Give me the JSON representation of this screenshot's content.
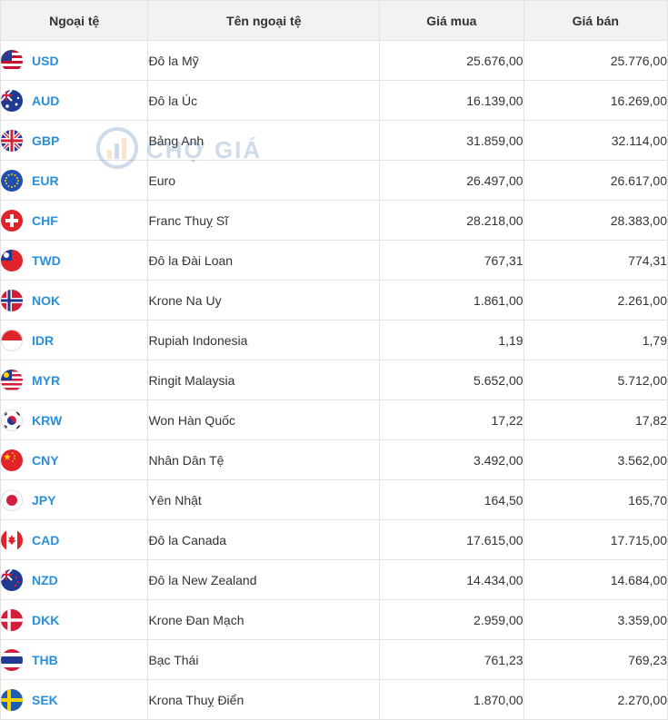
{
  "headers": {
    "code": "Ngoại tệ",
    "name": "Tên ngoại tệ",
    "buy": "Giá mua",
    "sell": "Giá bán"
  },
  "watermark": {
    "text": "CHỢ GIÁ"
  },
  "colors": {
    "increase": "#e0242b",
    "decrease": "#2fbf71",
    "code": "#2a8fd8"
  },
  "rows": [
    {
      "code": "USD",
      "name": "Đô la Mỹ",
      "buy": "25.676,00",
      "sell": "25.776,00",
      "trend": "up",
      "flag": "us-flag-icon"
    },
    {
      "code": "AUD",
      "name": "Đô la Úc",
      "buy": "16.139,00",
      "sell": "16.269,00",
      "trend": "up",
      "flag": "au-flag-icon"
    },
    {
      "code": "GBP",
      "name": "Bảng Anh",
      "buy": "31.859,00",
      "sell": "32.114,00",
      "trend": "up",
      "flag": "gb-flag-icon"
    },
    {
      "code": "EUR",
      "name": "Euro",
      "buy": "26.497,00",
      "sell": "26.617,00",
      "trend": "up",
      "flag": "eu-flag-icon"
    },
    {
      "code": "CHF",
      "name": "Franc Thuỵ Sĩ",
      "buy": "28.218,00",
      "sell": "28.383,00",
      "trend": "down",
      "flag": "ch-flag-icon"
    },
    {
      "code": "TWD",
      "name": "Đô la Đài Loan",
      "buy": "767,31",
      "sell": "774,31",
      "trend": "up",
      "flag": "tw-flag-icon"
    },
    {
      "code": "NOK",
      "name": "Krone Na Uy",
      "buy": "1.861,00",
      "sell": "2.261,00",
      "trend": "down",
      "flag": "no-flag-icon"
    },
    {
      "code": "IDR",
      "name": "Rupiah Indonesia",
      "buy": "1,19",
      "sell": "1,79",
      "trend": "down",
      "flag": "id-flag-icon"
    },
    {
      "code": "MYR",
      "name": "Ringit Malaysia",
      "buy": "5.652,00",
      "sell": "5.712,00",
      "trend": "down",
      "flag": "my-flag-icon"
    },
    {
      "code": "KRW",
      "name": "Won Hàn Quốc",
      "buy": "17,22",
      "sell": "17,82",
      "trend": "up",
      "flag": "kr-flag-icon"
    },
    {
      "code": "CNY",
      "name": "Nhân Dân Tệ",
      "buy": "3.492,00",
      "sell": "3.562,00",
      "trend": "up",
      "flag": "cn-flag-icon"
    },
    {
      "code": "JPY",
      "name": "Yên Nhật",
      "buy": "164,50",
      "sell": "165,70",
      "trend": "up",
      "flag": "jp-flag-icon"
    },
    {
      "code": "CAD",
      "name": "Đô la Canada",
      "buy": "17.615,00",
      "sell": "17.715,00",
      "trend": "up",
      "flag": "ca-flag-icon"
    },
    {
      "code": "NZD",
      "name": "Đô la New Zealand",
      "buy": "14.434,00",
      "sell": "14.684,00",
      "trend": "up",
      "flag": "nz-flag-icon"
    },
    {
      "code": "DKK",
      "name": "Krone Đan Mạch",
      "buy": "2.959,00",
      "sell": "3.359,00",
      "trend": "up",
      "flag": "dk-flag-icon"
    },
    {
      "code": "THB",
      "name": "Bạc Thái",
      "buy": "761,23",
      "sell": "769,23",
      "trend": "up",
      "flag": "th-flag-icon"
    },
    {
      "code": "SEK",
      "name": "Krona Thuỵ Điển",
      "buy": "1.870,00",
      "sell": "2.270,00",
      "trend": "up",
      "flag": "se-flag-icon"
    }
  ]
}
